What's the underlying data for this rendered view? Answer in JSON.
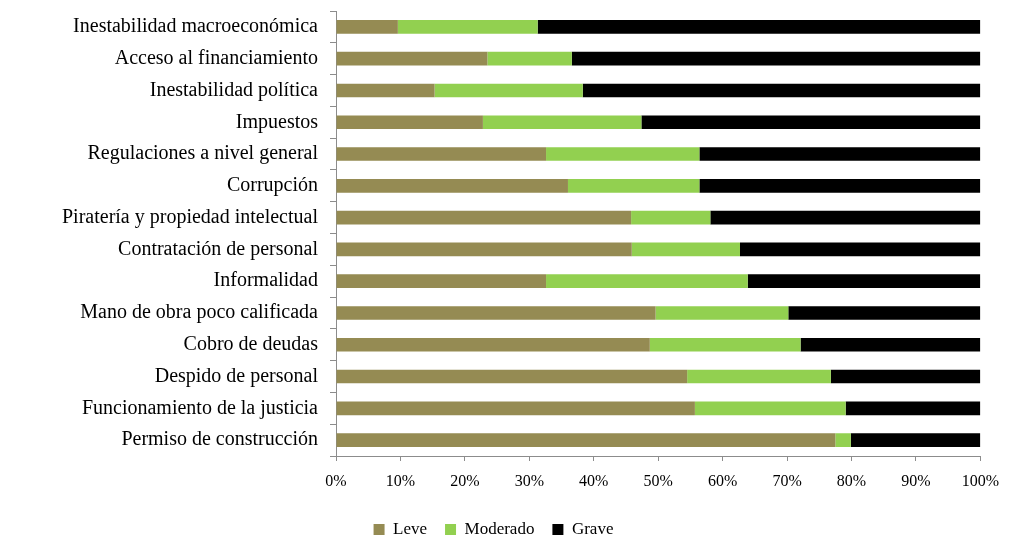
{
  "chart_data": {
    "type": "bar",
    "orientation": "horizontal",
    "stacked": true,
    "categories": [
      "Inestabilidad macroeconómica",
      "Acceso al financiamiento",
      "Inestabilidad política",
      "Impuestos",
      "Regulaciones a nivel general",
      "Corrupción",
      "Piratería y propiedad intelectual",
      "Contratación de personal",
      "Informalidad",
      "Mano de obra poco calificada",
      "Cobro de deudas",
      "Despido de personal",
      "Funcionamiento de la justicia",
      "Permiso de construcción"
    ],
    "series": [
      {
        "name": "Leve",
        "color": "#958b53",
        "values": [
          9.6,
          23.5,
          15.3,
          22.8,
          32.6,
          36.0,
          45.8,
          45.9,
          32.6,
          49.6,
          48.7,
          54.5,
          55.7,
          77.5
        ]
      },
      {
        "name": "Moderado",
        "color": "#92d050",
        "values": [
          21.7,
          13.1,
          23.0,
          24.6,
          23.8,
          20.4,
          12.3,
          16.8,
          31.3,
          20.6,
          23.4,
          22.3,
          23.4,
          2.4
        ]
      },
      {
        "name": "Grave",
        "color": "#000000",
        "values": [
          68.7,
          63.4,
          61.7,
          52.6,
          43.6,
          43.6,
          41.9,
          37.3,
          36.1,
          29.8,
          27.9,
          23.2,
          20.9,
          20.1
        ]
      }
    ],
    "xlim": [
      0,
      100
    ],
    "xticks": [
      {
        "value": 0,
        "label": "0%"
      },
      {
        "value": 10,
        "label": "10%"
      },
      {
        "value": 20,
        "label": "20%"
      },
      {
        "value": 30,
        "label": "30%"
      },
      {
        "value": 40,
        "label": "40%"
      },
      {
        "value": 50,
        "label": "50%"
      },
      {
        "value": 60,
        "label": "60%"
      },
      {
        "value": 70,
        "label": "70%"
      },
      {
        "value": 80,
        "label": "80%"
      },
      {
        "value": 90,
        "label": "90%"
      },
      {
        "value": 100,
        "label": "100%"
      }
    ],
    "grid": false,
    "legend": "bottom"
  }
}
